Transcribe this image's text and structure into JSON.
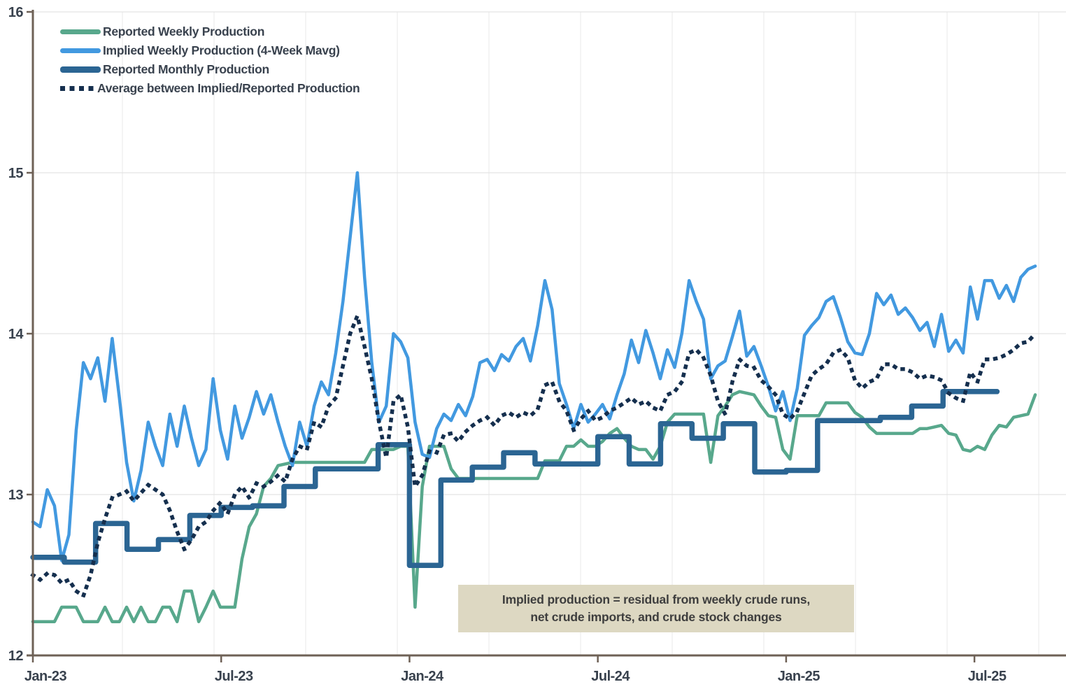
{
  "chart_data": {
    "type": "line",
    "title": "",
    "x_axis": {
      "ticks": [
        {
          "label": "Jan-23",
          "month": 0
        },
        {
          "label": "Jul-23",
          "month": 6
        },
        {
          "label": "Jan-24",
          "month": 12
        },
        {
          "label": "Jul-24",
          "month": 18
        },
        {
          "label": "Jan-25",
          "month": 24
        },
        {
          "label": "Jul-25",
          "month": 30
        }
      ],
      "range_months": [
        0,
        32.2
      ],
      "grid": "quarterly-faint"
    },
    "y_axis": {
      "min": 12,
      "max": 16,
      "ticks": [
        {
          "label": "12",
          "value": 12
        },
        {
          "label": "13",
          "value": 13
        },
        {
          "label": "14",
          "value": 14
        },
        {
          "label": "15",
          "value": 15
        },
        {
          "label": "16",
          "value": 16
        }
      ],
      "grid": "on"
    },
    "series": [
      {
        "name": "Reported Weekly Production",
        "color": "#58a88c",
        "style": "solid",
        "width": 4.5,
        "cadence": "weekly",
        "values": [
          12.21,
          12.21,
          12.21,
          12.21,
          12.3,
          12.3,
          12.3,
          12.21,
          12.21,
          12.21,
          12.3,
          12.21,
          12.21,
          12.3,
          12.21,
          12.3,
          12.21,
          12.21,
          12.3,
          12.3,
          12.21,
          12.4,
          12.4,
          12.21,
          12.3,
          12.4,
          12.3,
          12.3,
          12.3,
          12.6,
          12.8,
          12.88,
          13.05,
          13.1,
          13.18,
          13.19,
          13.2,
          13.2,
          13.2,
          13.2,
          13.2,
          13.2,
          13.2,
          13.2,
          13.2,
          13.2,
          13.2,
          13.28,
          13.28,
          13.28,
          13.28,
          13.3,
          13.3,
          12.3,
          13.05,
          13.3,
          13.3,
          13.3,
          13.16,
          13.1,
          13.1,
          13.1,
          13.1,
          13.1,
          13.1,
          13.1,
          13.1,
          13.1,
          13.1,
          13.1,
          13.1,
          13.21,
          13.21,
          13.21,
          13.3,
          13.3,
          13.34,
          13.3,
          13.3,
          13.33,
          13.38,
          13.41,
          13.35,
          13.3,
          13.28,
          13.28,
          13.22,
          13.3,
          13.45,
          13.5,
          13.5,
          13.5,
          13.5,
          13.5,
          13.2,
          13.49,
          13.55,
          13.62,
          13.64,
          13.63,
          13.62,
          13.55,
          13.49,
          13.48,
          13.28,
          13.22,
          13.49,
          13.49,
          13.49,
          13.49,
          13.57,
          13.57,
          13.57,
          13.57,
          13.51,
          13.48,
          13.42,
          13.38,
          13.38,
          13.38,
          13.38,
          13.38,
          13.38,
          13.41,
          13.41,
          13.42,
          13.43,
          13.38,
          13.37,
          13.28,
          13.27,
          13.3,
          13.28,
          13.37,
          13.43,
          13.42,
          13.48,
          13.49,
          13.5,
          13.62
        ]
      },
      {
        "name": "Implied Weekly Production (4-Week Mavg)",
        "color": "#4299e0",
        "style": "solid",
        "width": 4.5,
        "cadence": "weekly",
        "values": [
          12.83,
          12.8,
          13.03,
          12.93,
          12.59,
          12.75,
          13.4,
          13.82,
          13.72,
          13.85,
          13.58,
          13.97,
          13.6,
          13.2,
          12.96,
          13.15,
          13.45,
          13.3,
          13.18,
          13.5,
          13.3,
          13.55,
          13.35,
          13.18,
          13.28,
          13.72,
          13.4,
          13.22,
          13.55,
          13.35,
          13.48,
          13.64,
          13.5,
          13.62,
          13.45,
          13.3,
          13.18,
          13.45,
          13.3,
          13.55,
          13.7,
          13.62,
          13.88,
          14.2,
          14.6,
          15.0,
          14.35,
          13.82,
          13.45,
          13.55,
          14.0,
          13.95,
          13.85,
          13.45,
          13.25,
          13.23,
          13.41,
          13.5,
          13.46,
          13.56,
          13.49,
          13.61,
          13.82,
          13.84,
          13.77,
          13.87,
          13.83,
          13.92,
          13.97,
          13.83,
          14.05,
          14.33,
          14.15,
          13.69,
          13.56,
          13.41,
          13.56,
          13.45,
          13.5,
          13.56,
          13.47,
          13.62,
          13.75,
          13.96,
          13.82,
          14.02,
          13.88,
          13.72,
          13.9,
          13.79,
          14.0,
          14.33,
          14.2,
          14.09,
          13.72,
          13.8,
          13.83,
          13.98,
          14.14,
          13.86,
          13.92,
          13.8,
          13.67,
          13.52,
          13.64,
          13.46,
          13.66,
          13.99,
          14.05,
          14.1,
          14.2,
          14.23,
          14.1,
          13.95,
          13.88,
          13.87,
          14.0,
          14.25,
          14.18,
          14.24,
          14.12,
          14.16,
          14.1,
          14.02,
          14.07,
          13.92,
          14.12,
          13.89,
          13.96,
          13.88,
          14.29,
          14.09,
          14.33,
          14.33,
          14.22,
          14.3,
          14.2,
          14.35,
          14.4,
          14.42
        ]
      },
      {
        "name": "Reported Monthly Production",
        "color": "#2b6593",
        "style": "step",
        "width": 7.5,
        "cadence": "monthly",
        "values": [
          12.61,
          12.58,
          12.82,
          12.66,
          12.72,
          12.87,
          12.92,
          12.93,
          13.05,
          13.16,
          13.16,
          13.31,
          12.56,
          13.09,
          13.17,
          13.26,
          13.19,
          13.19,
          13.36,
          13.19,
          13.44,
          13.35,
          13.44,
          13.14,
          13.15,
          13.46,
          13.46,
          13.48,
          13.55,
          13.64,
          13.64
        ],
        "last_month_fraction": 0.72
      },
      {
        "name": "Average between Implied/Reported Production",
        "color": "#152f4e",
        "style": "dotted",
        "width": 5.5,
        "cadence": "weekly",
        "values": [
          12.5,
          12.47,
          12.51,
          12.5,
          12.45,
          12.47,
          12.4,
          12.37,
          12.5,
          12.7,
          12.85,
          12.98,
          13.0,
          13.02,
          12.96,
          13.01,
          13.06,
          13.03,
          13.0,
          12.9,
          12.77,
          12.66,
          12.72,
          12.8,
          12.83,
          12.9,
          12.95,
          12.88,
          13.0,
          13.05,
          12.98,
          13.07,
          13.05,
          13.08,
          13.12,
          13.08,
          13.22,
          13.3,
          13.28,
          13.45,
          13.42,
          13.55,
          13.6,
          13.8,
          14.0,
          14.11,
          13.92,
          13.72,
          13.45,
          13.23,
          13.58,
          13.62,
          13.42,
          13.05,
          13.12,
          13.27,
          13.26,
          13.37,
          13.38,
          13.33,
          13.39,
          13.43,
          13.46,
          13.48,
          13.43,
          13.49,
          13.51,
          13.48,
          13.51,
          13.49,
          13.53,
          13.68,
          13.7,
          13.58,
          13.52,
          13.4,
          13.47,
          13.52,
          13.46,
          13.48,
          13.52,
          13.54,
          13.57,
          13.6,
          13.56,
          13.58,
          13.54,
          13.52,
          13.62,
          13.64,
          13.7,
          13.88,
          13.9,
          13.85,
          13.74,
          13.58,
          13.5,
          13.7,
          13.84,
          13.8,
          13.79,
          13.71,
          13.67,
          13.62,
          13.5,
          13.47,
          13.52,
          13.63,
          13.74,
          13.78,
          13.81,
          13.88,
          13.9,
          13.85,
          13.71,
          13.66,
          13.7,
          13.72,
          13.81,
          13.81,
          13.78,
          13.78,
          13.76,
          13.72,
          13.74,
          13.73,
          13.71,
          13.63,
          13.6,
          13.58,
          13.76,
          13.7,
          13.84,
          13.84,
          13.85,
          13.87,
          13.9,
          13.94,
          13.95,
          14.0
        ]
      }
    ],
    "legend_position": "top-left-inside",
    "colors": {
      "axis_spine": "#6e6156",
      "tick_label": "#39424e",
      "grid_horizontal": "#e3e3e3",
      "grid_vertical": "#ededed",
      "annotation_bg": "#ddd8c2",
      "annotation_text": "#3e3e3e"
    }
  },
  "annotation": {
    "line1": "Implied production = residual from weekly crude runs,",
    "line2": "net crude imports, and crude stock changes"
  }
}
